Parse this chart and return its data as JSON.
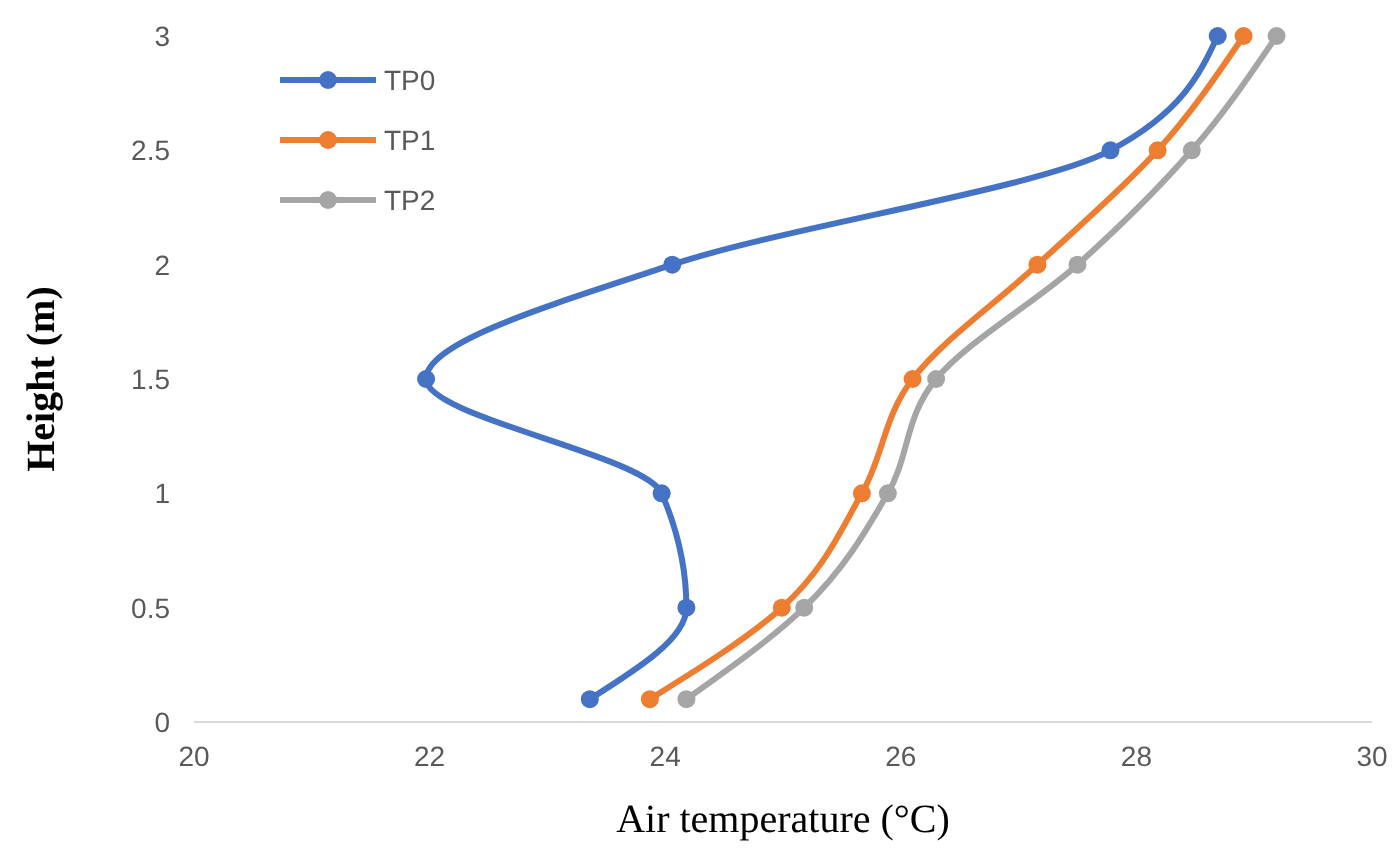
{
  "chart_data": {
    "type": "line",
    "xlabel": "Air temperature (°C)",
    "ylabel": "Height (m)",
    "xlim": [
      20,
      30
    ],
    "xticks": [
      20,
      22,
      24,
      26,
      28,
      30
    ],
    "ylim": [
      0,
      3
    ],
    "yticks": [
      0,
      0.5,
      1,
      1.5,
      2,
      2.5,
      3
    ],
    "grid": false,
    "legend": "top left",
    "marker": "circle",
    "line_style": "solid",
    "series": [
      {
        "name": "TP0",
        "color": "#4472c4",
        "x": [
          23.36,
          24.18,
          23.97,
          21.97,
          24.06,
          27.78,
          28.69
        ],
        "values": [
          0.1,
          0.5,
          1,
          1.5,
          2,
          2.5,
          3
        ]
      },
      {
        "name": "TP1",
        "color": "#ed7d31",
        "x": [
          23.87,
          24.99,
          25.67,
          26.1,
          27.16,
          28.18,
          28.91
        ],
        "values": [
          0.1,
          0.5,
          1,
          1.5,
          2,
          2.5,
          3
        ]
      },
      {
        "name": "TP2",
        "color": "#a5a5a5",
        "x": [
          24.18,
          25.18,
          25.89,
          26.3,
          27.5,
          28.47,
          29.19
        ],
        "values": [
          0.1,
          0.5,
          1,
          1.5,
          2,
          2.5,
          3
        ]
      }
    ]
  }
}
